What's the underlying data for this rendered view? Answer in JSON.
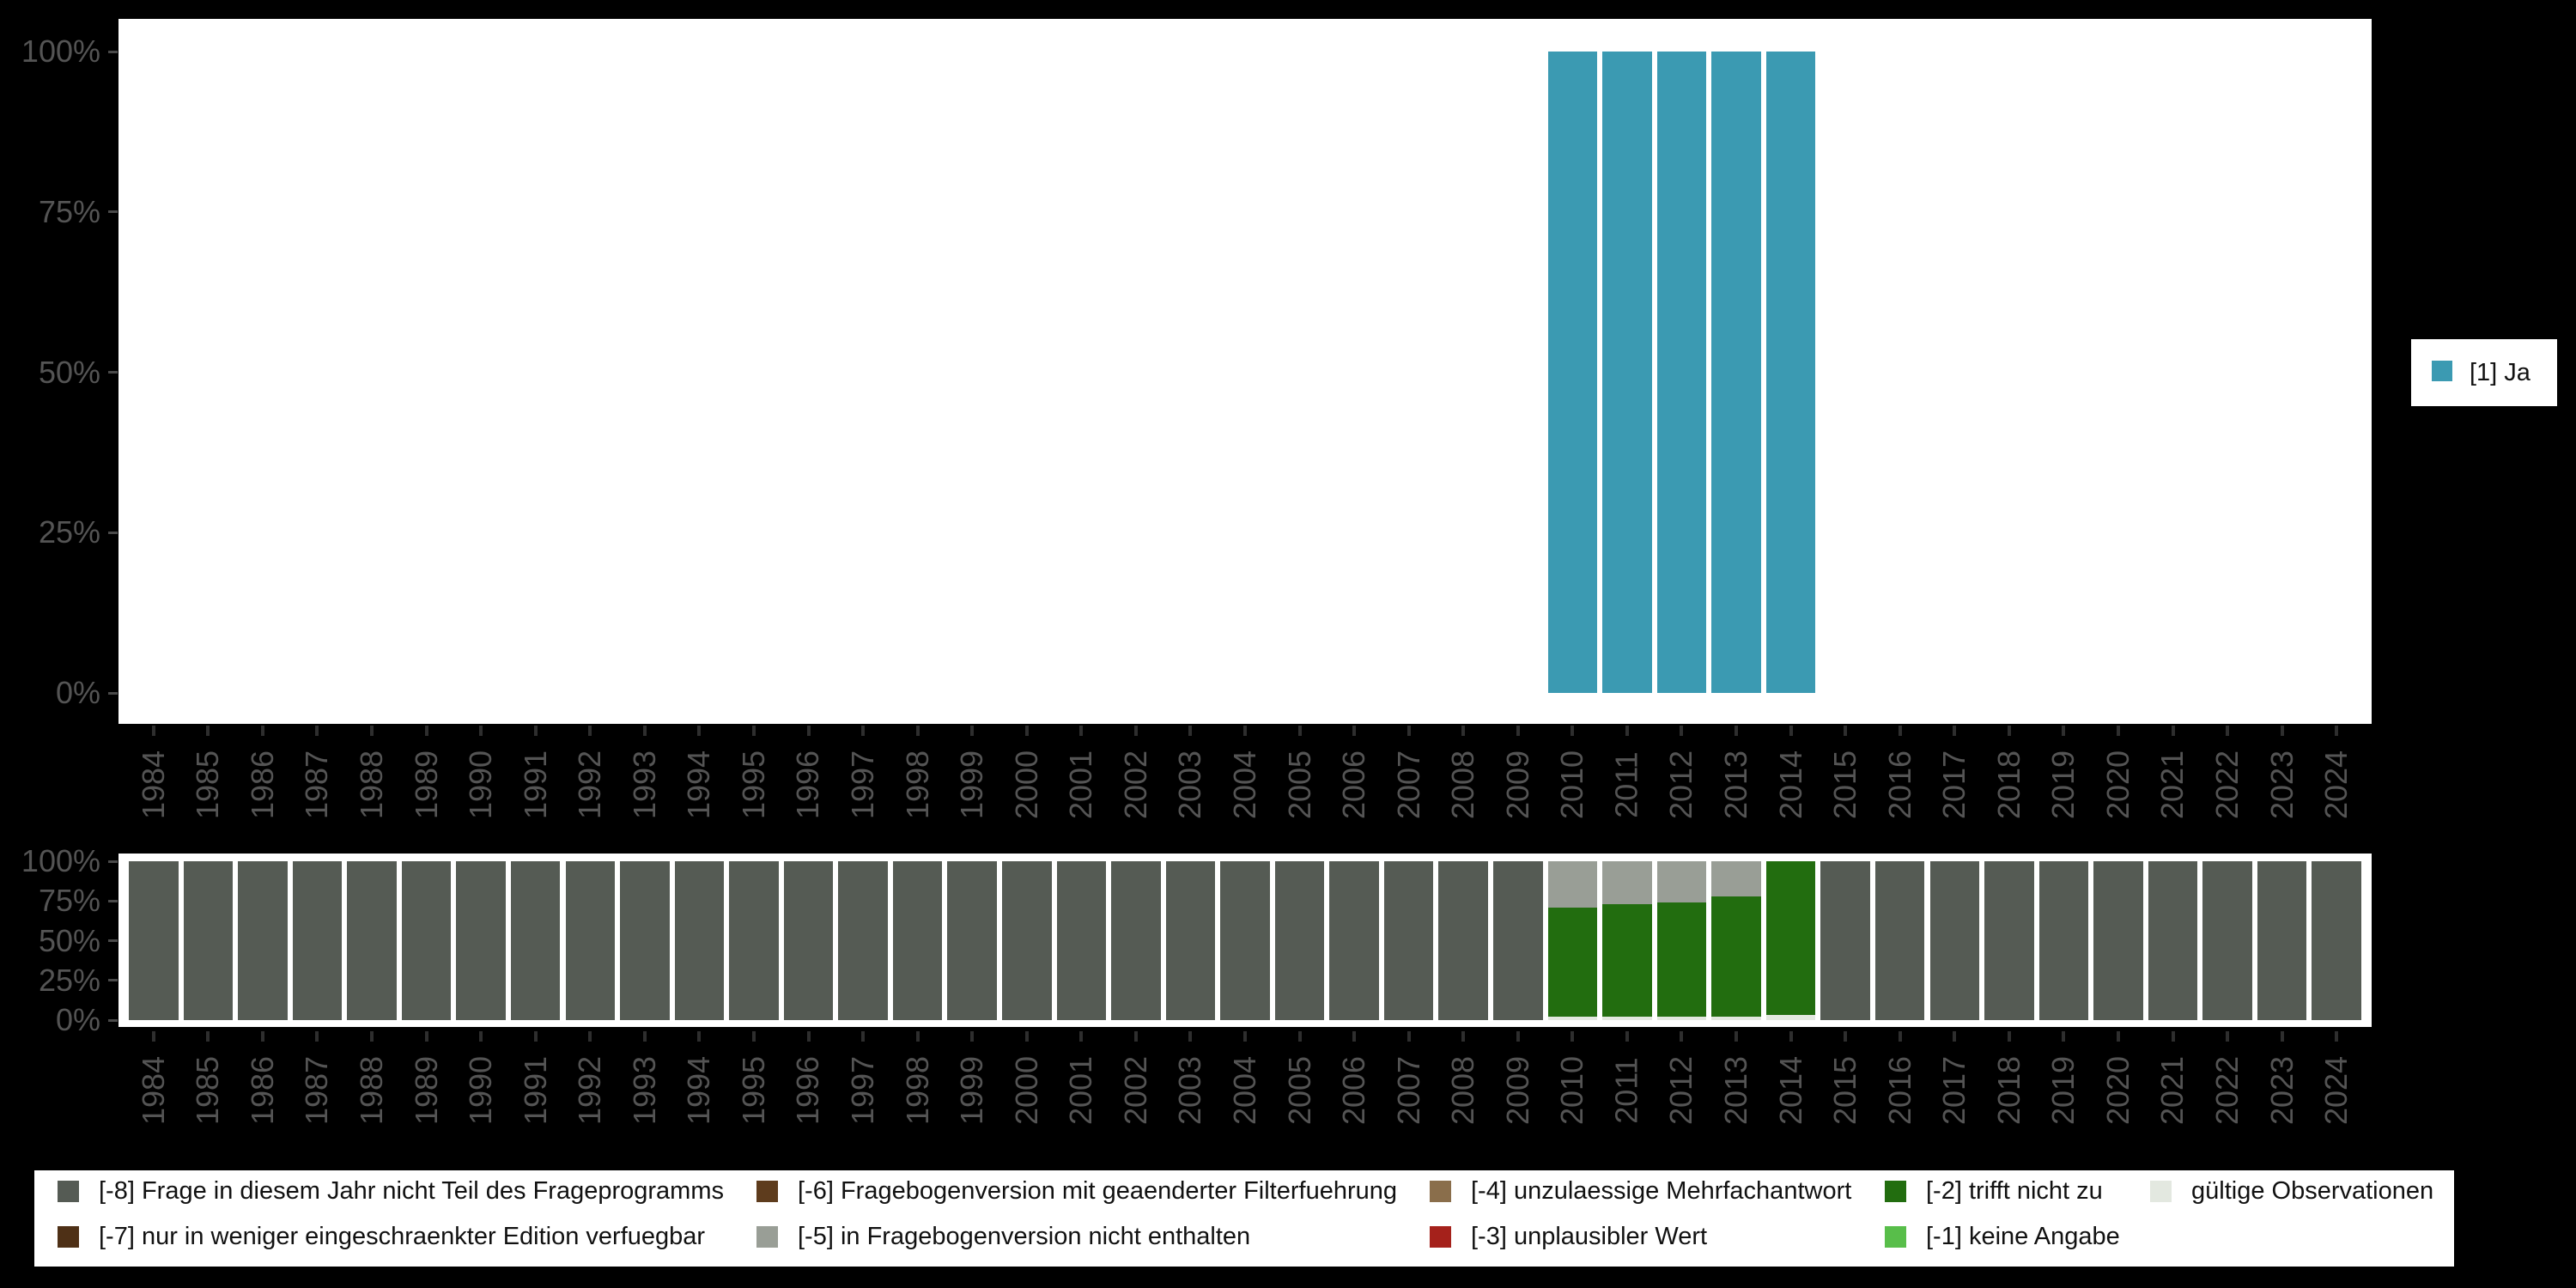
{
  "colors": {
    "background": "#000000",
    "panel": "#ffffff",
    "axis_text": "#545454",
    "y_tick": "#4a4a4a",
    "x_tick": "#2e2e2e",
    "legend_text": "#111111"
  },
  "legend_columns": [
    [
      "-8",
      "-7"
    ],
    [
      "-6",
      "-5"
    ],
    [
      "-4",
      "-3"
    ],
    [
      "-2",
      "-1"
    ],
    [
      "valid"
    ]
  ],
  "chart_data": [
    {
      "type": "bar",
      "title": "",
      "categories": [
        "1984",
        "1985",
        "1986",
        "1987",
        "1988",
        "1989",
        "1990",
        "1991",
        "1992",
        "1993",
        "1994",
        "1995",
        "1996",
        "1997",
        "1998",
        "1999",
        "2000",
        "2001",
        "2002",
        "2003",
        "2004",
        "2005",
        "2006",
        "2007",
        "2008",
        "2009",
        "2010",
        "2011",
        "2012",
        "2013",
        "2014",
        "2015",
        "2016",
        "2017",
        "2018",
        "2019",
        "2020",
        "2021",
        "2022",
        "2023",
        "2024"
      ],
      "series": [
        {
          "id": "1",
          "name": "[1] Ja",
          "color": "#3B9AB2",
          "values": [
            0,
            0,
            0,
            0,
            0,
            0,
            0,
            0,
            0,
            0,
            0,
            0,
            0,
            0,
            0,
            0,
            0,
            0,
            0,
            0,
            0,
            0,
            0,
            0,
            0,
            0,
            100,
            100,
            100,
            100,
            100,
            0,
            0,
            0,
            0,
            0,
            0,
            0,
            0,
            0,
            0
          ]
        }
      ],
      "ylim": [
        0,
        100
      ],
      "y_ticks": [
        {
          "pct": 100,
          "label": "100%"
        },
        {
          "pct": 75,
          "label": "75%"
        },
        {
          "pct": 50,
          "label": "50%"
        },
        {
          "pct": 25,
          "label": "25%"
        },
        {
          "pct": 0,
          "label": "0%"
        }
      ],
      "x_tick_angle": -90,
      "grid": false,
      "legend_position": "right"
    },
    {
      "type": "bar",
      "stacked": true,
      "title": "",
      "categories": [
        "1984",
        "1985",
        "1986",
        "1987",
        "1988",
        "1989",
        "1990",
        "1991",
        "1992",
        "1993",
        "1994",
        "1995",
        "1996",
        "1997",
        "1998",
        "1999",
        "2000",
        "2001",
        "2002",
        "2003",
        "2004",
        "2005",
        "2006",
        "2007",
        "2008",
        "2009",
        "2010",
        "2011",
        "2012",
        "2013",
        "2014",
        "2015",
        "2016",
        "2017",
        "2018",
        "2019",
        "2020",
        "2021",
        "2022",
        "2023",
        "2024"
      ],
      "series": [
        {
          "id": "valid",
          "name": "gültige Observationen",
          "color": "#E3E8E0",
          "values": [
            0,
            0,
            0,
            0,
            0,
            0,
            0,
            0,
            0,
            0,
            0,
            0,
            0,
            0,
            0,
            0,
            0,
            0,
            0,
            0,
            0,
            0,
            0,
            0,
            0,
            0,
            2,
            2,
            2,
            2,
            3,
            0,
            0,
            0,
            0,
            0,
            0,
            0,
            0,
            0,
            0
          ]
        },
        {
          "id": "-1",
          "name": "[-1] keine Angabe",
          "color": "#58BE4A",
          "values": [
            0,
            0,
            0,
            0,
            0,
            0,
            0,
            0,
            0,
            0,
            0,
            0,
            0,
            0,
            0,
            0,
            0,
            0,
            0,
            0,
            0,
            0,
            0,
            0,
            0,
            0,
            0,
            0,
            0,
            0,
            0,
            0,
            0,
            0,
            0,
            0,
            0,
            0,
            0,
            0,
            0
          ]
        },
        {
          "id": "-2",
          "name": "[-2] trifft nicht zu",
          "color": "#226D0F",
          "values": [
            0,
            0,
            0,
            0,
            0,
            0,
            0,
            0,
            0,
            0,
            0,
            0,
            0,
            0,
            0,
            0,
            0,
            0,
            0,
            0,
            0,
            0,
            0,
            0,
            0,
            0,
            69,
            71,
            72,
            76,
            97,
            0,
            0,
            0,
            0,
            0,
            0,
            0,
            0,
            0,
            0
          ]
        },
        {
          "id": "-3",
          "name": "[-3] unplausibler Wert",
          "color": "#A5211B",
          "values": [
            0,
            0,
            0,
            0,
            0,
            0,
            0,
            0,
            0,
            0,
            0,
            0,
            0,
            0,
            0,
            0,
            0,
            0,
            0,
            0,
            0,
            0,
            0,
            0,
            0,
            0,
            0,
            0,
            0,
            0,
            0,
            0,
            0,
            0,
            0,
            0,
            0,
            0,
            0,
            0,
            0
          ]
        },
        {
          "id": "-4",
          "name": "[-4] unzulaessige Mehrfachantwort",
          "color": "#8A6E4B",
          "values": [
            0,
            0,
            0,
            0,
            0,
            0,
            0,
            0,
            0,
            0,
            0,
            0,
            0,
            0,
            0,
            0,
            0,
            0,
            0,
            0,
            0,
            0,
            0,
            0,
            0,
            0,
            0,
            0,
            0,
            0,
            0,
            0,
            0,
            0,
            0,
            0,
            0,
            0,
            0,
            0,
            0
          ]
        },
        {
          "id": "-5",
          "name": "[-5] in Fragebogenversion nicht enthalten",
          "color": "#999E96",
          "values": [
            0,
            0,
            0,
            0,
            0,
            0,
            0,
            0,
            0,
            0,
            0,
            0,
            0,
            0,
            0,
            0,
            0,
            0,
            0,
            0,
            0,
            0,
            0,
            0,
            0,
            0,
            29,
            27,
            26,
            22,
            0,
            0,
            0,
            0,
            0,
            0,
            0,
            0,
            0,
            0,
            0
          ]
        },
        {
          "id": "-6",
          "name": "[-6] Fragebogenversion mit geaenderter Filterfuehrung",
          "color": "#5E3C1D",
          "values": [
            0,
            0,
            0,
            0,
            0,
            0,
            0,
            0,
            0,
            0,
            0,
            0,
            0,
            0,
            0,
            0,
            0,
            0,
            0,
            0,
            0,
            0,
            0,
            0,
            0,
            0,
            0,
            0,
            0,
            0,
            0,
            0,
            0,
            0,
            0,
            0,
            0,
            0,
            0,
            0,
            0
          ]
        },
        {
          "id": "-7",
          "name": "[-7] nur in weniger eingeschraenkter Edition verfuegbar",
          "color": "#4E3016",
          "values": [
            0,
            0,
            0,
            0,
            0,
            0,
            0,
            0,
            0,
            0,
            0,
            0,
            0,
            0,
            0,
            0,
            0,
            0,
            0,
            0,
            0,
            0,
            0,
            0,
            0,
            0,
            0,
            0,
            0,
            0,
            0,
            0,
            0,
            0,
            0,
            0,
            0,
            0,
            0,
            0,
            0
          ]
        },
        {
          "id": "-8",
          "name": "[-8] Frage in diesem Jahr nicht Teil des Frageprogramms",
          "color": "#555B54",
          "values": [
            100,
            100,
            100,
            100,
            100,
            100,
            100,
            100,
            100,
            100,
            100,
            100,
            100,
            100,
            100,
            100,
            100,
            100,
            100,
            100,
            100,
            100,
            100,
            100,
            100,
            100,
            0,
            0,
            0,
            0,
            0,
            100,
            100,
            100,
            100,
            100,
            100,
            100,
            100,
            100,
            100
          ]
        }
      ],
      "ylim": [
        0,
        100
      ],
      "y_ticks": [
        {
          "pct": 100,
          "label": "100%"
        },
        {
          "pct": 75,
          "label": "75%"
        },
        {
          "pct": 50,
          "label": "50%"
        },
        {
          "pct": 25,
          "label": "25%"
        },
        {
          "pct": 0,
          "label": "0%"
        }
      ],
      "x_tick_angle": -90,
      "grid": false,
      "legend_position": "bottom"
    }
  ]
}
